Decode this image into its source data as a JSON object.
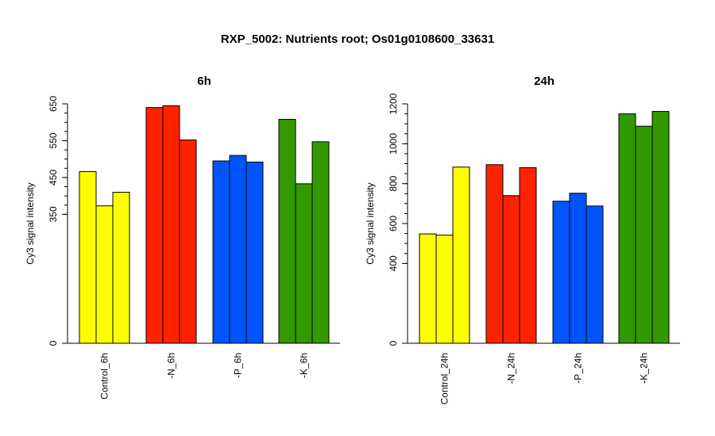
{
  "chart_data": {
    "title": "RXP_5002: Nutrients root; Os01g0108600_33631",
    "panels": [
      {
        "type": "bar",
        "title": "6h",
        "ylabel": "Cy3 signal intensity",
        "ylim": [
          0,
          650
        ],
        "yticks": [
          "0",
          "350",
          "450",
          "550",
          "650"
        ],
        "ytick_values": [
          0,
          350,
          450,
          550,
          650
        ],
        "categories": [
          "Control_6h",
          "-N_6h",
          "-P_6h",
          "-K_6h"
        ],
        "colors": [
          "#ffff00",
          "#ff2200",
          "#0055ff",
          "#339900"
        ],
        "values": [
          [
            466,
            373,
            410
          ],
          [
            640,
            645,
            552
          ],
          [
            495,
            510,
            492
          ],
          [
            608,
            433,
            547
          ]
        ]
      },
      {
        "type": "bar",
        "title": "24h",
        "ylabel": "Cy3 signal intensity",
        "ylim": [
          0,
          1200
        ],
        "yticks": [
          "0",
          "400",
          "600",
          "800",
          "1000",
          "1200"
        ],
        "ytick_values": [
          0,
          400,
          600,
          800,
          1000,
          1200
        ],
        "categories": [
          "Control_24h",
          "-N_24h",
          "-P_24h",
          "-K_24h"
        ],
        "colors": [
          "#ffff00",
          "#ff2200",
          "#0055ff",
          "#339900"
        ],
        "values": [
          [
            548,
            542,
            883
          ],
          [
            895,
            740,
            880
          ],
          [
            712,
            752,
            688
          ],
          [
            1150,
            1088,
            1162
          ]
        ]
      }
    ]
  }
}
